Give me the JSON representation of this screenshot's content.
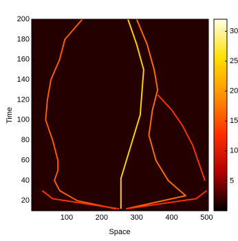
{
  "chart_data": {
    "type": "trajectory",
    "xlabel": "Space",
    "ylabel": "Time",
    "xlim": [
      0,
      505
    ],
    "ylim": [
      10,
      200
    ],
    "xticks": [
      100,
      200,
      300,
      400,
      500
    ],
    "yticks": [
      20,
      40,
      60,
      80,
      100,
      120,
      140,
      160,
      180,
      200
    ],
    "background": "#250000",
    "series": [
      {
        "color": "#ff5a00",
        "x": [
          240,
          130,
          80,
          65,
          75,
          75,
          60,
          40,
          45,
          55,
          80,
          95,
          145
        ],
        "values": [
          12,
          20,
          30,
          40,
          50,
          60,
          80,
          100,
          120,
          140,
          160,
          180,
          200
        ]
      },
      {
        "color": "#ffd000",
        "x": [
          255,
          255,
          310,
          320,
          300,
          275
        ],
        "values": [
          12,
          42,
          105,
          150,
          175,
          200
        ]
      },
      {
        "color": "#ff6a00",
        "x": [
          270,
          440,
          390,
          355,
          335,
          345,
          360,
          350,
          330,
          300
        ],
        "values": [
          12,
          25,
          40,
          60,
          85,
          110,
          130,
          150,
          175,
          200
        ]
      },
      {
        "color": "#ff3000",
        "x": [
          360,
          400,
          430,
          460,
          480,
          495
        ],
        "values": [
          125,
          110,
          95,
          75,
          55,
          40
        ]
      },
      {
        "color": "#ff3000",
        "x": [
          250,
          60,
          30
        ],
        "values": [
          12,
          22,
          30
        ]
      },
      {
        "color": "#ff3000",
        "x": [
          270,
          470,
          500
        ],
        "values": [
          12,
          22,
          30
        ]
      }
    ],
    "colorbar": {
      "lim": [
        0,
        32
      ],
      "ticks": [
        5,
        10,
        15,
        20,
        25,
        30
      ],
      "colors": [
        "#000000",
        "#b00000",
        "#ff3000",
        "#ff9000",
        "#ffe000",
        "#ffffe8"
      ]
    }
  }
}
